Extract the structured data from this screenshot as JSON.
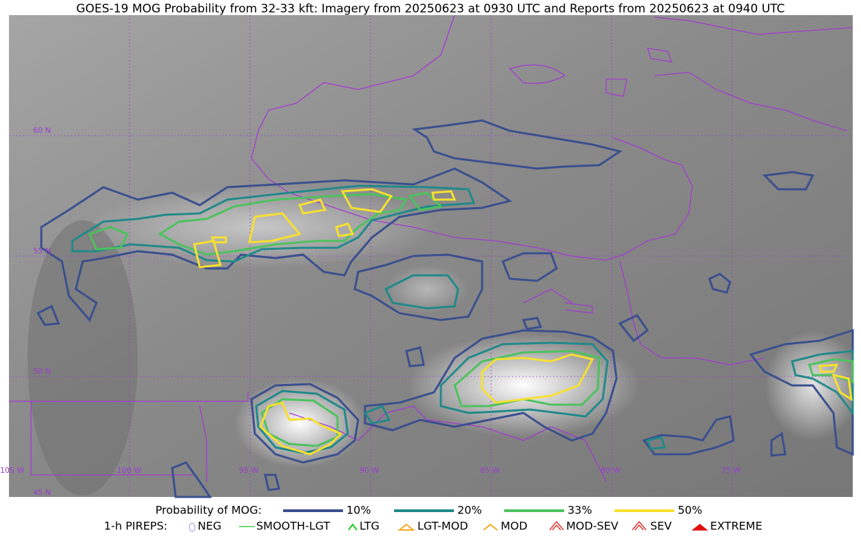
{
  "title": "GOES-19 MOG Probability from 32-33 kft: Imagery from 20250623 at 0930 UTC and Reports from 20250623 at 0940 UTC",
  "map": {
    "lat_labels": [
      "60 N",
      "55 N",
      "50 N",
      "45 N"
    ],
    "lon_labels": [
      "105 W",
      "100 W",
      "95 W",
      "90 W",
      "85 W",
      "80 W",
      "75 W"
    ]
  },
  "legend": {
    "probability": {
      "label": "Probability of MOG:",
      "items": [
        "10%",
        "20%",
        "33%",
        "50%"
      ]
    },
    "pireps": {
      "label": "1-h PIREPS:",
      "items": [
        "NEG",
        "SMOOTH-LGT",
        "LTG",
        "LGT-MOD",
        "MOD",
        "MOD-SEV",
        "SEV",
        "EXTREME"
      ]
    }
  }
}
